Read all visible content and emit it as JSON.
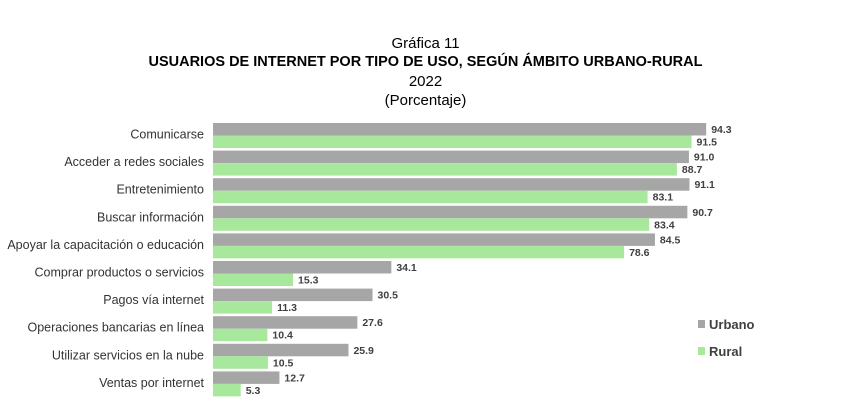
{
  "title": {
    "pre": "Gráfica 11",
    "main": "USUARIOS DE INTERNET POR TIPO DE USO, SEGÚN ÁMBITO URBANO-RURAL",
    "year": "2022",
    "unit": "(Porcentaje)"
  },
  "colors": {
    "urbano": "#a6a6a6",
    "rural": "#a8e89c"
  },
  "chart_data": {
    "type": "bar",
    "orientation": "horizontal",
    "title": "USUARIOS DE INTERNET POR TIPO DE USO, SEGÚN ÁMBITO URBANO-RURAL",
    "categories": [
      "Comunicarse",
      "Acceder a redes sociales",
      "Entretenimiento",
      "Buscar información",
      "Apoyar la capacitación o educación",
      "Comprar productos o servicios",
      "Pagos vía internet",
      "Operaciones bancarias en línea",
      "Utilizar servicios en la nube",
      "Ventas por internet"
    ],
    "series": [
      {
        "name": "Urbano",
        "values": [
          94.3,
          91.0,
          91.1,
          90.7,
          84.5,
          34.1,
          30.5,
          27.6,
          25.9,
          12.7
        ]
      },
      {
        "name": "Rural",
        "values": [
          91.5,
          88.7,
          83.1,
          83.4,
          78.6,
          15.3,
          11.3,
          10.4,
          10.5,
          5.3
        ]
      }
    ],
    "xlim": [
      0,
      100
    ],
    "grid": false,
    "legend_position": "right"
  }
}
